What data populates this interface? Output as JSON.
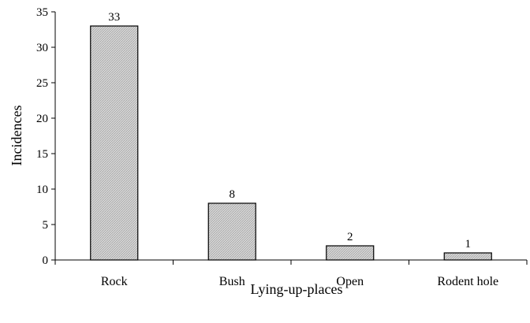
{
  "chart_data": {
    "type": "bar",
    "categories": [
      "Rock",
      "Bush",
      "Open",
      "Rodent hole"
    ],
    "values": [
      33,
      8,
      2,
      1
    ],
    "data_labels": [
      "33",
      "8",
      "2",
      "1"
    ],
    "title": "",
    "xlabel": "Lying-up-places",
    "ylabel": "Incidences",
    "ylim": [
      0,
      35
    ],
    "yticks": [
      0,
      5,
      10,
      15,
      20,
      25,
      30,
      35
    ],
    "ytick_labels": [
      "0",
      "5",
      "10",
      "15",
      "20",
      "25",
      "30",
      "35"
    ],
    "grid": false,
    "legend": "none",
    "bar_fill": "#d0d0d0",
    "bar_pattern": "fine hatch",
    "bar_stroke": "#000000"
  }
}
